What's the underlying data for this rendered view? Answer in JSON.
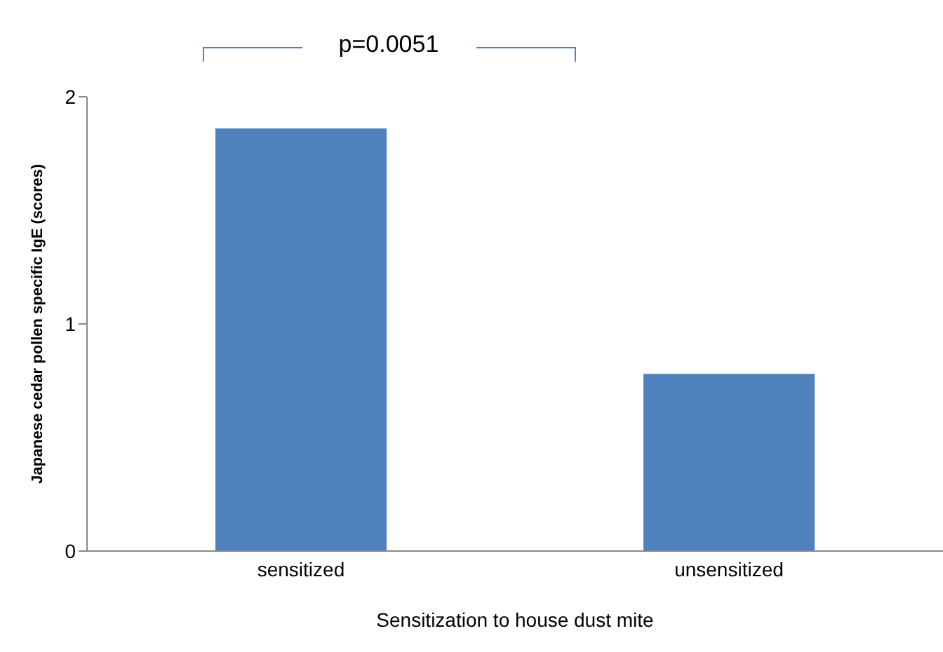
{
  "chart_data": {
    "type": "bar",
    "xlabel": "Sensitization to house dust mite",
    "ylabel": "Japanese cedar pollen specific IgE (scores)",
    "categories": [
      "sensitized",
      "unsensitized"
    ],
    "values": [
      1.86,
      0.78
    ],
    "color": "#4f81bd",
    "ylim": [
      0,
      2
    ],
    "yticks": [
      0,
      1,
      2
    ],
    "annotations": [
      "p=0.0051"
    ]
  }
}
